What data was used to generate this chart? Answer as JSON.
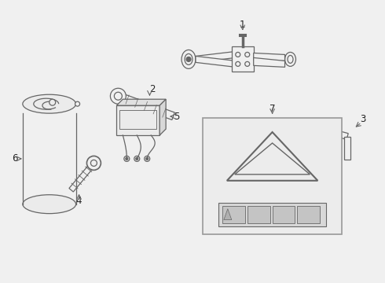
{
  "bg_color": "#f0f0f0",
  "line_color": "#666666",
  "label_color": "#222222",
  "fig_w": 4.9,
  "fig_h": 3.6,
  "dpi": 100
}
